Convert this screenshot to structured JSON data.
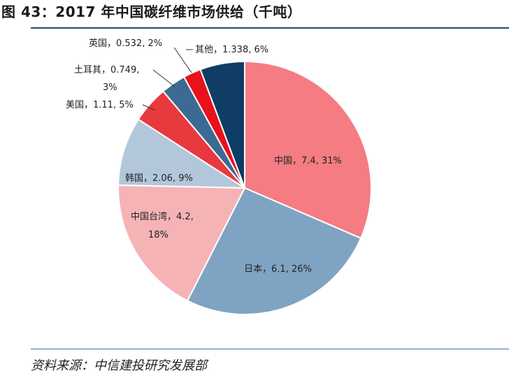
{
  "title": "图 43：2017 年中国碳纤维市场供给（千吨）",
  "source": "资料来源：中信建投研究发展部",
  "colors": {
    "rule": "#1f4e79"
  },
  "chart_data": {
    "type": "pie",
    "unit": "千吨",
    "slices": [
      {
        "name": "中国",
        "value": 7.4,
        "percent": "31%",
        "label": "中国，7.4, 31%",
        "color": "#f47c82"
      },
      {
        "name": "日本",
        "value": 6.1,
        "percent": "26%",
        "label": "日本，6.1, 26%",
        "color": "#7fa4c3"
      },
      {
        "name": "中国台湾",
        "value": 4.2,
        "percent": "18%",
        "label": "中国台湾，4.2, 18%",
        "color": "#f6b3b6"
      },
      {
        "name": "韩国",
        "value": 2.06,
        "percent": "9%",
        "label": "韩国，2.06, 9%",
        "color": "#b3c7da"
      },
      {
        "name": "美国",
        "value": 1.11,
        "percent": "5%",
        "label": "美国，1.11, 5%",
        "color": "#e8393e"
      },
      {
        "name": "土耳其",
        "value": 0.749,
        "percent": "3%",
        "label": "土耳其，0.749, 3%",
        "color": "#3d6a93"
      },
      {
        "name": "英国",
        "value": 0.532,
        "percent": "2%",
        "label": "英国，0.532, 2%",
        "color": "#e8121c"
      },
      {
        "name": "其他",
        "value": 1.338,
        "percent": "6%",
        "label": "其他，1.338, 6%",
        "color": "#0f3d66"
      }
    ]
  }
}
